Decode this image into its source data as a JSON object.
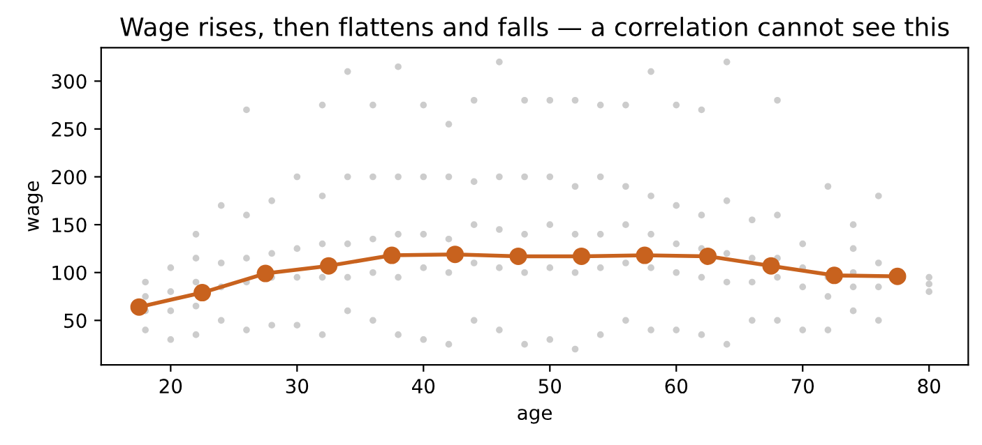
{
  "chart_data": {
    "type": "scatter",
    "title": "Wage rises, then flattens and falls — a correlation cannot see this",
    "xlabel": "age",
    "ylabel": "wage",
    "xlim": [
      14.5,
      83.1
    ],
    "ylim": [
      3.5,
      335
    ],
    "xticks": [
      20,
      30,
      40,
      50,
      60,
      70,
      80
    ],
    "yticks": [
      50,
      100,
      150,
      200,
      250,
      300
    ],
    "grid": false,
    "legend": false,
    "series": [
      {
        "color": "#808080",
        "marker": "circle",
        "x": [
          18,
          18,
          18,
          18,
          20,
          20,
          20,
          20,
          22,
          22,
          22,
          22,
          22,
          24,
          24,
          24,
          24,
          26,
          26,
          26,
          26,
          26,
          28,
          28,
          28,
          28,
          30,
          30,
          30,
          30,
          32,
          32,
          32,
          32,
          32,
          34,
          34,
          34,
          34,
          34,
          36,
          36,
          36,
          36,
          36,
          38,
          38,
          38,
          38,
          38,
          40,
          40,
          40,
          40,
          40,
          42,
          42,
          42,
          42,
          42,
          44,
          44,
          44,
          44,
          44,
          46,
          46,
          46,
          46,
          46,
          48,
          48,
          48,
          48,
          48,
          50,
          50,
          50,
          50,
          50,
          52,
          52,
          52,
          52,
          52,
          54,
          54,
          54,
          54,
          54,
          56,
          56,
          56,
          56,
          56,
          58,
          58,
          58,
          58,
          58,
          60,
          60,
          60,
          60,
          60,
          62,
          62,
          62,
          62,
          62,
          64,
          64,
          64,
          64,
          64,
          66,
          66,
          66,
          66,
          68,
          68,
          68,
          68,
          68,
          70,
          70,
          70,
          70,
          72,
          72,
          72,
          72,
          74,
          74,
          74,
          74,
          74,
          76,
          76,
          76,
          76,
          80,
          80,
          80
        ],
        "values": [
          40,
          60,
          75,
          90,
          30,
          60,
          80,
          105,
          35,
          65,
          90,
          115,
          140,
          50,
          85,
          110,
          170,
          40,
          90,
          115,
          160,
          270,
          45,
          95,
          120,
          175,
          45,
          95,
          125,
          200,
          35,
          95,
          130,
          180,
          275,
          60,
          95,
          130,
          200,
          310,
          50,
          100,
          135,
          200,
          275,
          35,
          95,
          140,
          200,
          315,
          30,
          105,
          140,
          200,
          275,
          25,
          100,
          135,
          200,
          255,
          50,
          110,
          150,
          195,
          280,
          40,
          105,
          145,
          200,
          320,
          25,
          100,
          140,
          200,
          280,
          30,
          105,
          150,
          200,
          280,
          20,
          100,
          140,
          190,
          280,
          35,
          105,
          140,
          200,
          275,
          50,
          110,
          150,
          190,
          275,
          40,
          105,
          140,
          180,
          310,
          40,
          100,
          130,
          170,
          275,
          35,
          95,
          125,
          160,
          270,
          25,
          90,
          120,
          175,
          320,
          50,
          90,
          115,
          155,
          50,
          95,
          115,
          160,
          280,
          40,
          85,
          105,
          130,
          40,
          75,
          95,
          190,
          60,
          85,
          100,
          125,
          150,
          50,
          85,
          110,
          180,
          80,
          88,
          95
        ]
      },
      {
        "type": "line",
        "color": "#c8621e",
        "marker": "circle",
        "line_style": "solid",
        "x": [
          17.5,
          22.5,
          27.5,
          32.5,
          37.5,
          42.5,
          47.5,
          52.5,
          57.5,
          62.5,
          67.5,
          72.5,
          77.5
        ],
        "values": [
          64,
          79,
          99,
          107,
          118,
          119,
          117,
          117,
          118,
          117,
          107,
          97,
          96
        ]
      }
    ]
  }
}
